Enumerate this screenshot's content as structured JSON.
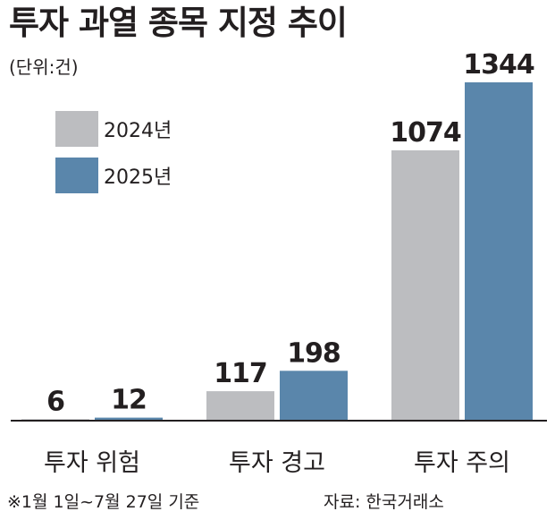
{
  "title": "투자 과열 종목 지정 추이",
  "unit": "(단위:건)",
  "footnote": "※1월 1일~7월 27일 기준",
  "source": "자료: 한국거래소",
  "colors": {
    "2024": "#bcbdc0",
    "2025": "#5a86ab",
    "baseline": "#231f20"
  },
  "chart_data": {
    "type": "bar",
    "title": "투자 과열 종목 지정 추이",
    "unit": "(단위:건)",
    "categories": [
      "투자 위험",
      "투자 경고",
      "투자 주의"
    ],
    "series": [
      {
        "name": "2024년",
        "values": [
          6,
          117,
          1074
        ]
      },
      {
        "name": "2025년",
        "values": [
          12,
          198,
          1344
        ]
      }
    ],
    "ylim": [
      0,
      1344
    ],
    "legend": "top-left",
    "grid": false
  }
}
